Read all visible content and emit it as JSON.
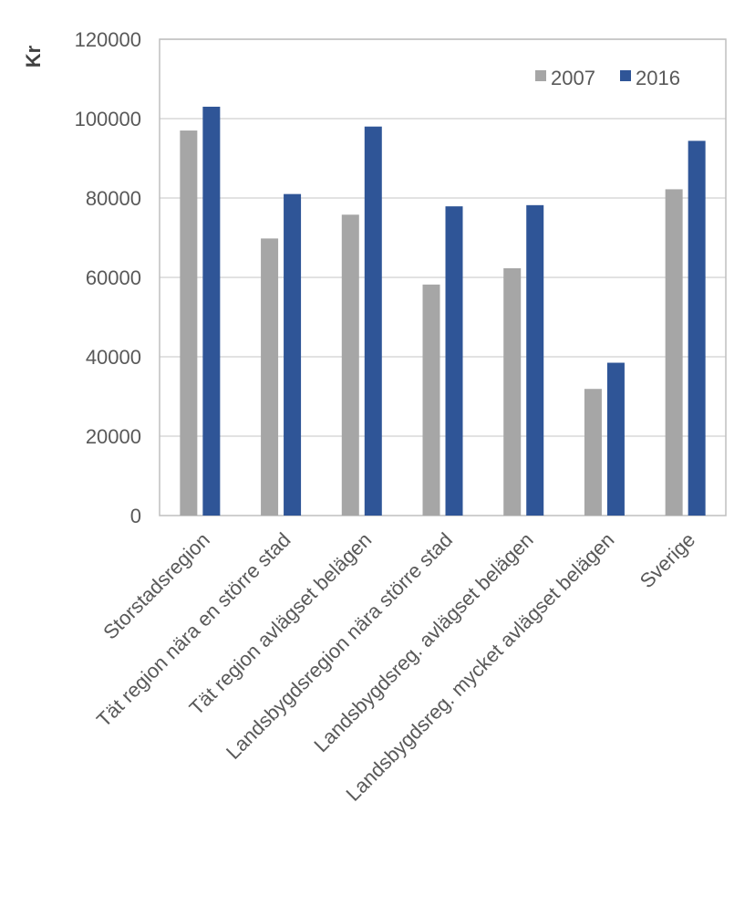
{
  "chart_data": {
    "type": "bar",
    "ylabel": "Kr",
    "ylim": [
      0,
      120000
    ],
    "yticks": [
      0,
      20000,
      40000,
      60000,
      80000,
      100000,
      120000
    ],
    "grid": true,
    "legend_position": "top-right",
    "categories": [
      "Storstadsregion",
      "Tät region nära en större stad",
      "Tät region avlägset belägen",
      "Landsbygdsregion nära större stad",
      "Landsbygdsreg. avlägset belägen",
      "Landsbygdsreg. mycket avlägset belägen",
      "Sverige"
    ],
    "series": [
      {
        "name": "2007",
        "color": "#a6a6a6",
        "values": [
          97000,
          69800,
          75800,
          58200,
          62300,
          31900,
          82200
        ]
      },
      {
        "name": "2016",
        "color": "#2f5597",
        "values": [
          103000,
          81000,
          98000,
          77900,
          78200,
          38500,
          94400
        ]
      }
    ]
  }
}
